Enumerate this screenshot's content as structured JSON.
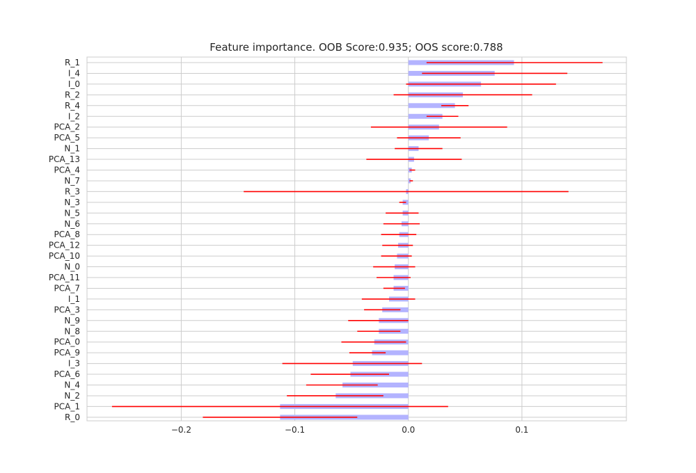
{
  "chart_data": {
    "type": "bar",
    "orientation": "horizontal",
    "title": "Feature importance. OOB Score:0.935; OOS score:0.788",
    "xlabel": "",
    "ylabel": "",
    "xlim": [
      -0.283,
      0.192
    ],
    "xticks": [
      -0.2,
      -0.1,
      0.0,
      0.1
    ],
    "xtick_labels": [
      "−0.2",
      "−0.1",
      "0.0",
      "0.1"
    ],
    "grid": true,
    "bar_color": "#b3b3ff",
    "error_color": "#ff0000",
    "series": [
      {
        "name": "mean",
        "values": [
          0.093,
          0.076,
          0.064,
          0.048,
          0.041,
          0.03,
          0.027,
          0.018,
          0.009,
          0.005,
          0.003,
          0.002,
          -0.002,
          -0.005,
          -0.005,
          -0.006,
          -0.008,
          -0.009,
          -0.01,
          -0.012,
          -0.013,
          -0.013,
          -0.017,
          -0.023,
          -0.026,
          -0.026,
          -0.03,
          -0.032,
          -0.049,
          -0.051,
          -0.058,
          -0.064,
          -0.113,
          -0.113
        ]
      },
      {
        "name": "std",
        "values": [
          0.078,
          0.064,
          0.066,
          0.061,
          0.012,
          0.014,
          0.06,
          0.028,
          0.021,
          0.042,
          0.002,
          0.001,
          0.143,
          0.003,
          0.015,
          0.016,
          0.016,
          0.014,
          0.014,
          0.019,
          0.015,
          0.009,
          0.024,
          0.016,
          0.027,
          0.019,
          0.03,
          0.016,
          0.062,
          0.035,
          0.031,
          0.042,
          0.148,
          0.068
        ]
      }
    ],
    "categories": [
      "R_1",
      "I_4",
      "I_0",
      "R_2",
      "R_4",
      "I_2",
      "PCA_2",
      "PCA_5",
      "N_1",
      "PCA_13",
      "PCA_4",
      "N_7",
      "R_3",
      "N_3",
      "N_5",
      "N_6",
      "PCA_8",
      "PCA_12",
      "PCA_10",
      "N_0",
      "PCA_11",
      "PCA_7",
      "I_1",
      "PCA_3",
      "N_9",
      "N_8",
      "PCA_0",
      "PCA_9",
      "I_3",
      "PCA_6",
      "N_4",
      "N_2",
      "PCA_1",
      "R_0"
    ],
    "mean": [
      0.093,
      0.076,
      0.064,
      0.048,
      0.041,
      0.03,
      0.027,
      0.018,
      0.009,
      0.005,
      0.003,
      0.002,
      -0.002,
      -0.005,
      -0.005,
      -0.006,
      -0.008,
      -0.009,
      -0.01,
      -0.012,
      -0.013,
      -0.013,
      -0.017,
      -0.023,
      -0.026,
      -0.026,
      -0.03,
      -0.032,
      -0.049,
      -0.051,
      -0.058,
      -0.064,
      -0.113,
      -0.113
    ],
    "error_low": [
      0.016,
      0.012,
      -0.002,
      -0.013,
      0.029,
      0.016,
      -0.033,
      -0.01,
      -0.012,
      -0.037,
      0.001,
      0.001,
      -0.145,
      -0.008,
      -0.02,
      -0.022,
      -0.024,
      -0.023,
      -0.024,
      -0.031,
      -0.028,
      -0.022,
      -0.041,
      -0.039,
      -0.053,
      -0.045,
      -0.059,
      -0.052,
      -0.111,
      -0.086,
      -0.09,
      -0.107,
      -0.261,
      -0.181
    ],
    "error_high": [
      0.171,
      0.14,
      0.13,
      0.109,
      0.053,
      0.044,
      0.087,
      0.046,
      0.03,
      0.047,
      0.006,
      0.004,
      0.141,
      -0.002,
      0.009,
      0.01,
      0.007,
      0.004,
      0.003,
      0.006,
      0.002,
      -0.003,
      0.006,
      -0.007,
      0.0,
      -0.007,
      -0.002,
      -0.02,
      0.012,
      -0.017,
      -0.027,
      -0.022,
      0.035,
      -0.045
    ]
  }
}
